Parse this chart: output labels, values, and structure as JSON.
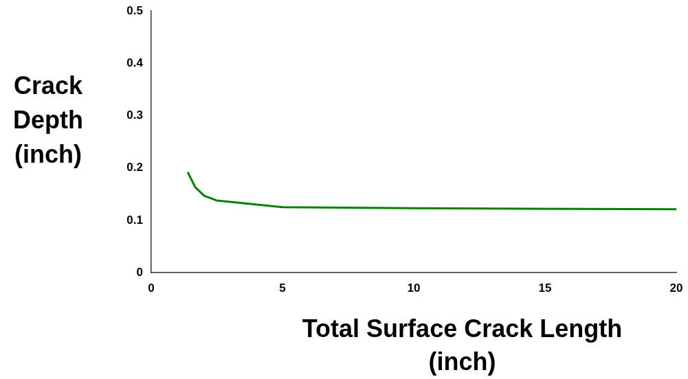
{
  "chart_data": {
    "type": "line",
    "xlabel": "Total Surface Crack Length (inch)",
    "ylabel": "Crack Depth (inch)",
    "x": [
      1.39,
      1.68,
      2.02,
      2.49,
      5,
      10,
      20
    ],
    "series": [
      {
        "color": "#008000",
        "values": [
          0.192,
          0.163,
          0.147,
          0.138,
          0.125,
          0.123,
          0.121
        ]
      }
    ],
    "xlim": [
      0,
      20
    ],
    "xticks": [
      0,
      5,
      10,
      15,
      20
    ],
    "ylim": [
      0,
      0.5
    ],
    "yticks": [
      0,
      0.1,
      0.2,
      0.3,
      0.4,
      0.5
    ],
    "grid": false,
    "legend": false,
    "marker": "none",
    "line_style": "solid"
  }
}
